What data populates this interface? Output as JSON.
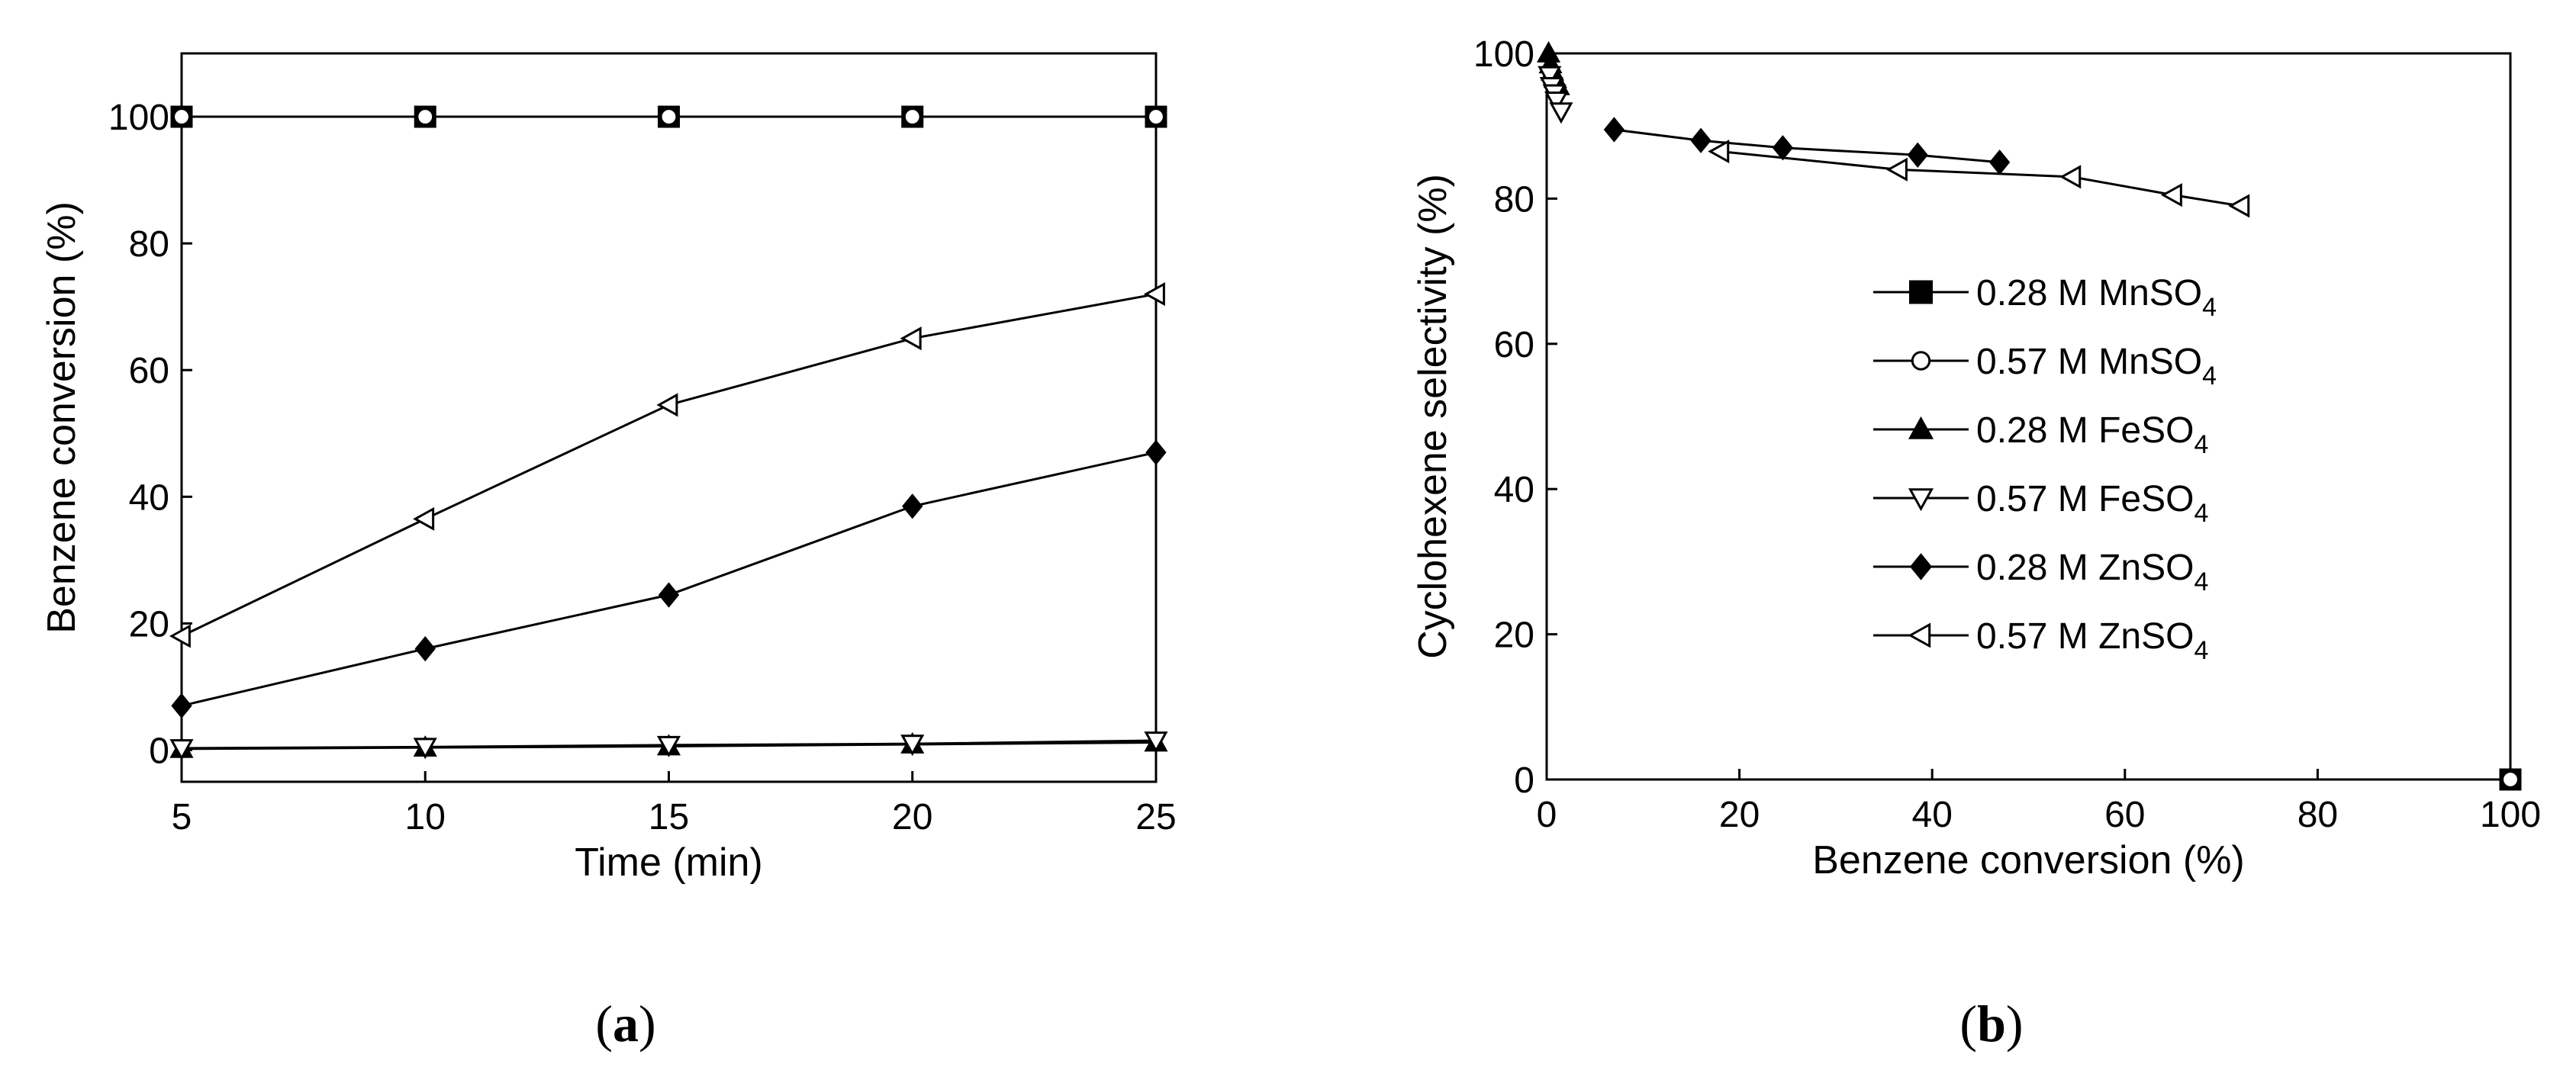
{
  "chart_data": [
    {
      "panel": "a",
      "type": "line",
      "title": "",
      "xlabel": "Time (min)",
      "ylabel": "Benzene conversion (%)",
      "xlim": [
        5,
        25
      ],
      "ylim": [
        -5,
        110
      ],
      "xticks": [
        5,
        10,
        15,
        20,
        25
      ],
      "yticks": [
        0,
        20,
        40,
        60,
        80,
        100
      ],
      "x": [
        5,
        10,
        15,
        20,
        25
      ],
      "series": [
        {
          "name": "0.28 M MnSO4",
          "marker": "square-filled",
          "values": [
            100,
            100,
            100,
            100,
            100
          ]
        },
        {
          "name": "0.57 M MnSO4",
          "marker": "circle-open",
          "values": [
            100,
            100,
            100,
            100,
            100
          ]
        },
        {
          "name": "0.28 M FeSO4",
          "marker": "triangle-up-filled",
          "values": [
            0.2,
            0.4,
            0.6,
            0.9,
            1.2
          ]
        },
        {
          "name": "0.57 M FeSO4",
          "marker": "triangle-down-open",
          "values": [
            0.3,
            0.5,
            0.8,
            1.0,
            1.5
          ]
        },
        {
          "name": "0.28 M ZnSO4",
          "marker": "diamond-filled",
          "values": [
            7,
            16,
            24.5,
            38.5,
            47
          ]
        },
        {
          "name": "0.57 M ZnSO4",
          "marker": "triangle-left-open",
          "values": [
            18,
            36.5,
            54.5,
            65,
            72
          ]
        }
      ],
      "panel_label": "a"
    },
    {
      "panel": "b",
      "type": "line",
      "title": "",
      "xlabel": "Benzene conversion (%)",
      "ylabel": "Cyclohexene selectivity (%)",
      "xlim": [
        0,
        100
      ],
      "ylim": [
        0,
        100
      ],
      "xticks": [
        0,
        20,
        40,
        60,
        80,
        100
      ],
      "yticks": [
        0,
        20,
        40,
        60,
        80,
        100
      ],
      "series": [
        {
          "name": "0.28 M MnSO4",
          "marker": "square-filled",
          "points": [
            [
              100,
              0
            ]
          ]
        },
        {
          "name": "0.57 M MnSO4",
          "marker": "circle-open",
          "points": [
            [
              100,
              0
            ]
          ]
        },
        {
          "name": "0.28 M FeSO4",
          "marker": "triangle-up-filled",
          "points": [
            [
              0.2,
              100
            ],
            [
              0.4,
              98.5
            ],
            [
              0.6,
              97.5
            ],
            [
              0.9,
              96.5
            ],
            [
              1.2,
              95.5
            ]
          ]
        },
        {
          "name": "0.57 M FeSO4",
          "marker": "triangle-down-open",
          "points": [
            [
              0.3,
              97
            ],
            [
              0.5,
              95.5
            ],
            [
              0.8,
              94.5
            ],
            [
              1.0,
              93.5
            ],
            [
              1.5,
              92
            ]
          ]
        },
        {
          "name": "0.28 M ZnSO4",
          "marker": "diamond-filled",
          "points": [
            [
              7,
              89.5
            ],
            [
              16,
              88
            ],
            [
              24.5,
              87
            ],
            [
              38.5,
              86
            ],
            [
              47,
              85
            ]
          ]
        },
        {
          "name": "0.57 M ZnSO4",
          "marker": "triangle-left-open",
          "points": [
            [
              18,
              86.5
            ],
            [
              36.5,
              84
            ],
            [
              54.5,
              83
            ],
            [
              65,
              80.5
            ],
            [
              72,
              79
            ]
          ]
        }
      ],
      "legend": {
        "position": "center-right",
        "entries": [
          {
            "base": "0.28 M MnSO",
            "sub": "4",
            "marker": "square-filled"
          },
          {
            "base": "0.57 M MnSO",
            "sub": "4",
            "marker": "circle-open"
          },
          {
            "base": "0.28 M FeSO",
            "sub": "4",
            "marker": "triangle-up-filled"
          },
          {
            "base": "0.57 M FeSO",
            "sub": "4",
            "marker": "triangle-down-open"
          },
          {
            "base": "0.28 M ZnSO",
            "sub": "4",
            "marker": "diamond-filled"
          },
          {
            "base": "0.57 M ZnSO",
            "sub": "4",
            "marker": "triangle-left-open"
          }
        ]
      },
      "panel_label": "b"
    }
  ]
}
